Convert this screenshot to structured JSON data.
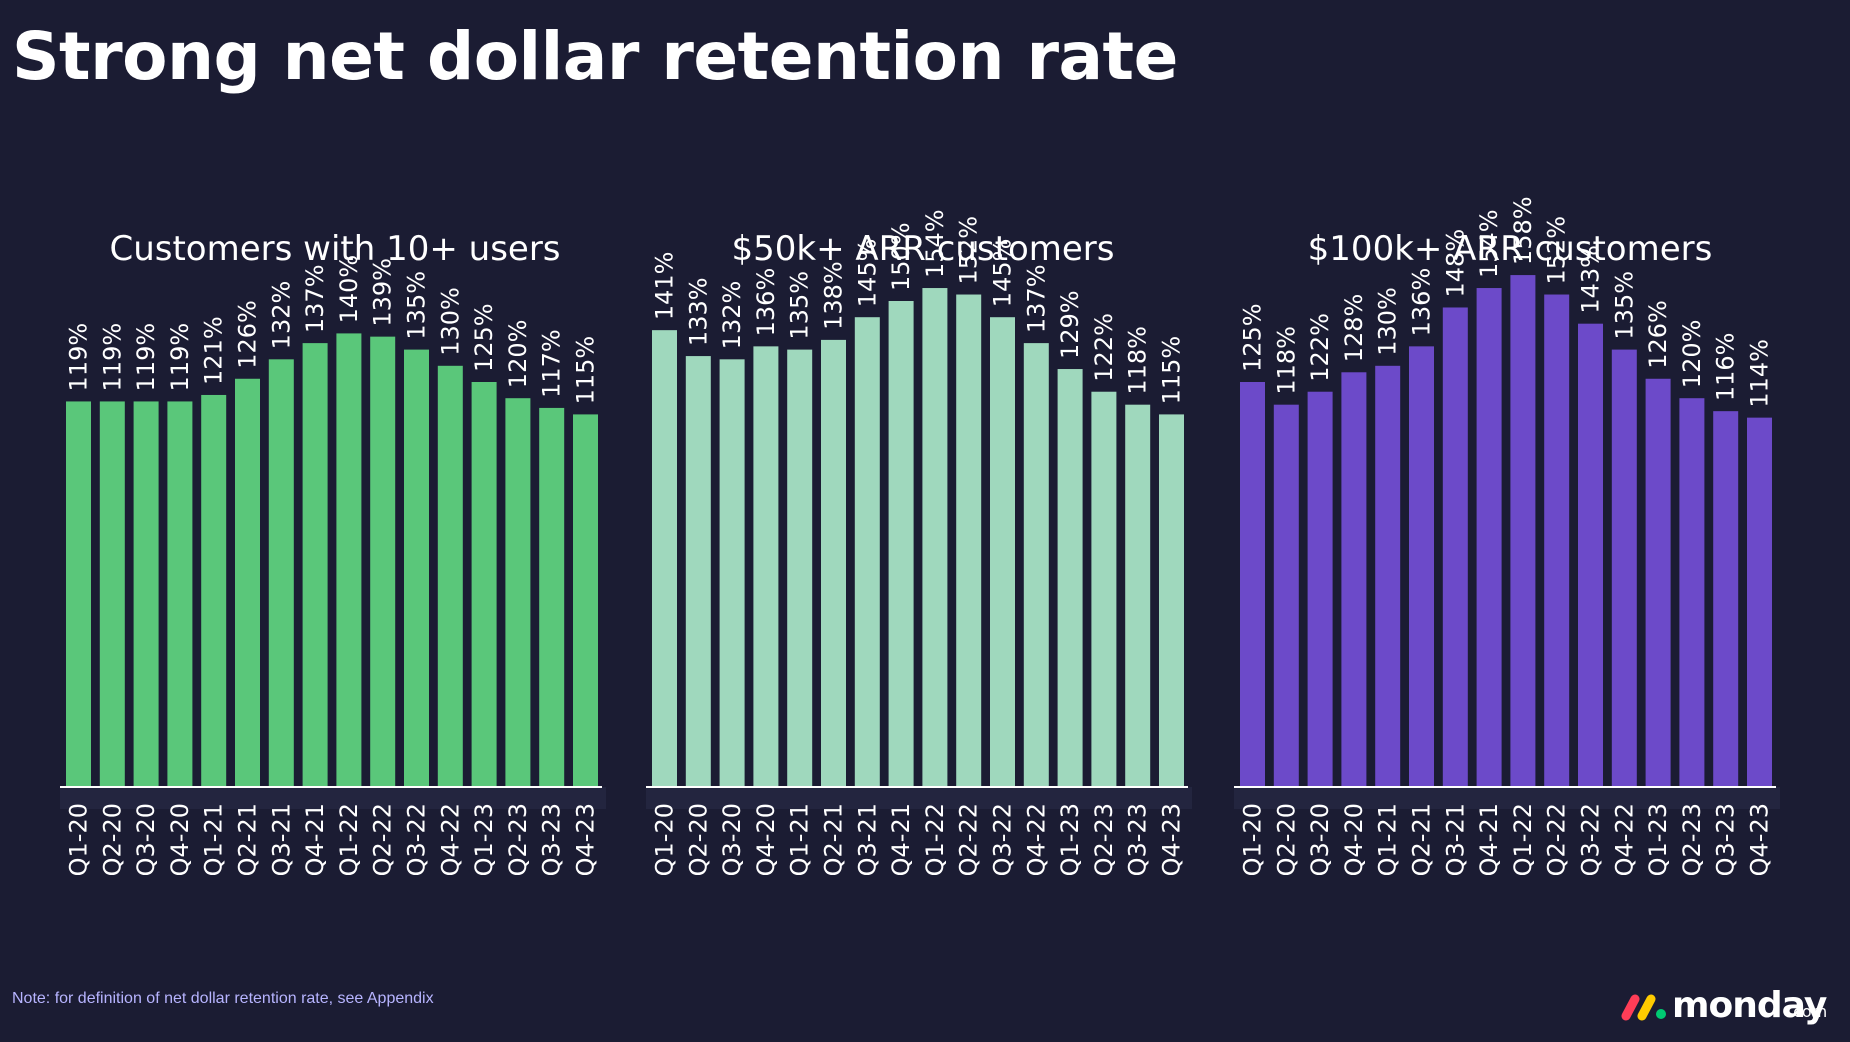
{
  "page": {
    "title": "Strong net dollar retention rate",
    "footnote": "Note: for definition of net dollar retention rate, see Appendix",
    "logo": {
      "word": "monday",
      "suffix": ".com",
      "dot_colors": [
        "#ff3d57",
        "#ffcb00",
        "#00ca72"
      ]
    }
  },
  "chart_data": [
    {
      "type": "bar",
      "title": "Customers with 10+ users",
      "color": "#5ac77a",
      "categories": [
        "Q1-20",
        "Q2-20",
        "Q3-20",
        "Q4-20",
        "Q1-21",
        "Q2-21",
        "Q3-21",
        "Q4-21",
        "Q1-22",
        "Q2-22",
        "Q3-22",
        "Q4-22",
        "Q1-23",
        "Q2-23",
        "Q3-23",
        "Q4-23"
      ],
      "values": [
        119,
        119,
        119,
        119,
        121,
        126,
        132,
        137,
        140,
        139,
        135,
        130,
        125,
        120,
        117,
        115
      ],
      "value_labels": [
        "119%",
        "119%",
        "119%",
        "119%",
        "121%",
        "126%",
        "132%",
        "137%",
        "140%",
        "139%",
        "135%",
        "130%",
        "125%",
        "120%",
        "117%",
        "115%"
      ],
      "xlabel": "",
      "ylabel": "",
      "ylim": [
        0,
        160
      ]
    },
    {
      "type": "bar",
      "title": "$50k+ ARR customers",
      "color": "#9fd8bd",
      "categories": [
        "Q1-20",
        "Q2-20",
        "Q3-20",
        "Q4-20",
        "Q1-21",
        "Q2-21",
        "Q3-21",
        "Q4-21",
        "Q1-22",
        "Q2-22",
        "Q3-22",
        "Q4-22",
        "Q1-23",
        "Q2-23",
        "Q3-23",
        "Q4-23"
      ],
      "values": [
        141,
        133,
        132,
        136,
        135,
        138,
        145,
        150,
        154,
        152,
        145,
        137,
        129,
        122,
        118,
        115
      ],
      "value_labels": [
        "141%",
        "133%",
        "132%",
        "136%",
        "135%",
        "138%",
        "145%",
        "150%",
        "154%",
        "152%",
        "145%",
        "137%",
        "129%",
        "122%",
        "118%",
        "115%"
      ],
      "xlabel": "",
      "ylabel": "",
      "ylim": [
        0,
        160
      ]
    },
    {
      "type": "bar",
      "title": "$100k+ ARR customers",
      "color": "#6c4ac9",
      "categories": [
        "Q1-20",
        "Q2-20",
        "Q3-20",
        "Q4-20",
        "Q1-21",
        "Q2-21",
        "Q3-21",
        "Q4-21",
        "Q1-22",
        "Q2-22",
        "Q3-22",
        "Q4-22",
        "Q1-23",
        "Q2-23",
        "Q3-23",
        "Q4-23"
      ],
      "values": [
        125,
        118,
        122,
        128,
        130,
        136,
        148,
        154,
        158,
        152,
        143,
        135,
        126,
        120,
        116,
        114
      ],
      "value_labels": [
        "125%",
        "118%",
        "122%",
        "128%",
        "130%",
        "136%",
        "148%",
        "154%",
        "158%",
        "152%",
        "143%",
        "135%",
        "126%",
        "120%",
        "116%",
        "114%"
      ],
      "xlabel": "",
      "ylabel": "",
      "ylim": [
        0,
        160
      ]
    }
  ]
}
